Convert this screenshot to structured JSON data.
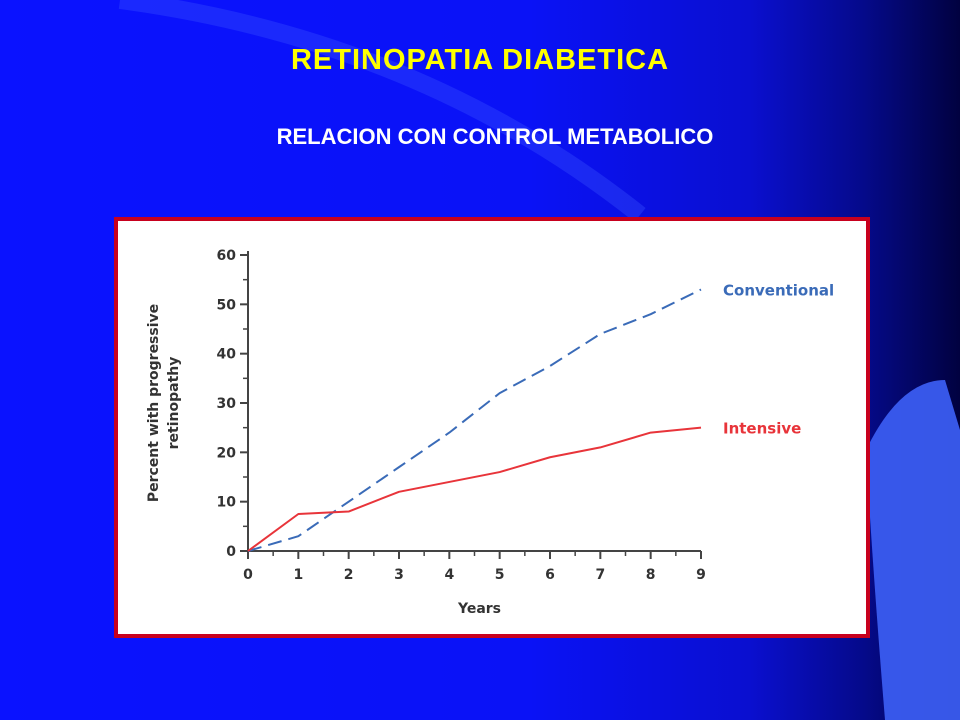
{
  "slide": {
    "title": "RETINOPATIA DIABETICA",
    "subtitle": "RELACION CON CONTROL METABOLICO"
  },
  "colors": {
    "background": "#0a12ff",
    "title": "#ffff00",
    "frame": "#c8001e",
    "conventional": "#3a6bb8",
    "intensive": "#e8343a"
  },
  "chart_data": {
    "type": "line",
    "xlabel": "Years",
    "ylabel": "Percent with progressive retinopathy",
    "xlim": [
      0,
      9
    ],
    "ylim": [
      0,
      60
    ],
    "x_ticks": [
      0,
      1,
      2,
      3,
      4,
      5,
      6,
      7,
      8,
      9
    ],
    "y_ticks": [
      0,
      10,
      20,
      30,
      40,
      50,
      60
    ],
    "grid": false,
    "series": [
      {
        "name": "Conventional",
        "style": "dashed",
        "color": "#3a6bb8",
        "x": [
          0,
          1,
          2,
          3,
          4,
          5,
          6,
          7,
          8,
          9
        ],
        "y": [
          0,
          3,
          10,
          17,
          24,
          32,
          37.5,
          44,
          48,
          53
        ]
      },
      {
        "name": "Intensive",
        "style": "solid",
        "color": "#e8343a",
        "x": [
          0,
          1,
          2,
          3,
          4,
          5,
          6,
          7,
          8,
          9
        ],
        "y": [
          0,
          7.5,
          8,
          12,
          14,
          16,
          19,
          21,
          24,
          25
        ]
      }
    ]
  }
}
